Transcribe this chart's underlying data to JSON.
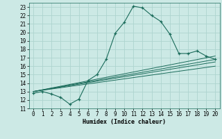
{
  "xlabel": "Humidex (Indice chaleur)",
  "xlim": [
    -0.5,
    20.5
  ],
  "ylim": [
    11,
    23.5
  ],
  "xticks": [
    0,
    1,
    2,
    3,
    4,
    5,
    6,
    7,
    8,
    9,
    10,
    11,
    12,
    13,
    14,
    15,
    16,
    17,
    18,
    19,
    20
  ],
  "yticks": [
    11,
    12,
    13,
    14,
    15,
    16,
    17,
    18,
    19,
    20,
    21,
    22,
    23
  ],
  "bg_color": "#cce9e5",
  "grid_color": "#aed4cf",
  "line_color": "#1a6b5a",
  "curve_x": [
    0,
    1,
    2,
    3,
    4,
    5,
    6,
    7,
    8,
    9,
    10,
    11,
    12,
    13,
    14,
    15,
    16,
    17,
    18,
    19,
    20
  ],
  "curve_y": [
    12.8,
    13.0,
    12.7,
    12.3,
    11.5,
    12.1,
    14.3,
    15.0,
    16.8,
    19.9,
    21.2,
    23.1,
    22.9,
    22.0,
    21.3,
    19.8,
    17.5,
    17.5,
    17.8,
    17.2,
    16.8
  ],
  "ref_lines": [
    {
      "x": [
        0,
        20
      ],
      "y": [
        13.0,
        17.2
      ]
    },
    {
      "x": [
        0,
        20
      ],
      "y": [
        13.0,
        16.8
      ]
    },
    {
      "x": [
        0,
        20
      ],
      "y": [
        13.0,
        16.5
      ]
    },
    {
      "x": [
        0,
        20
      ],
      "y": [
        13.0,
        16.0
      ]
    }
  ]
}
